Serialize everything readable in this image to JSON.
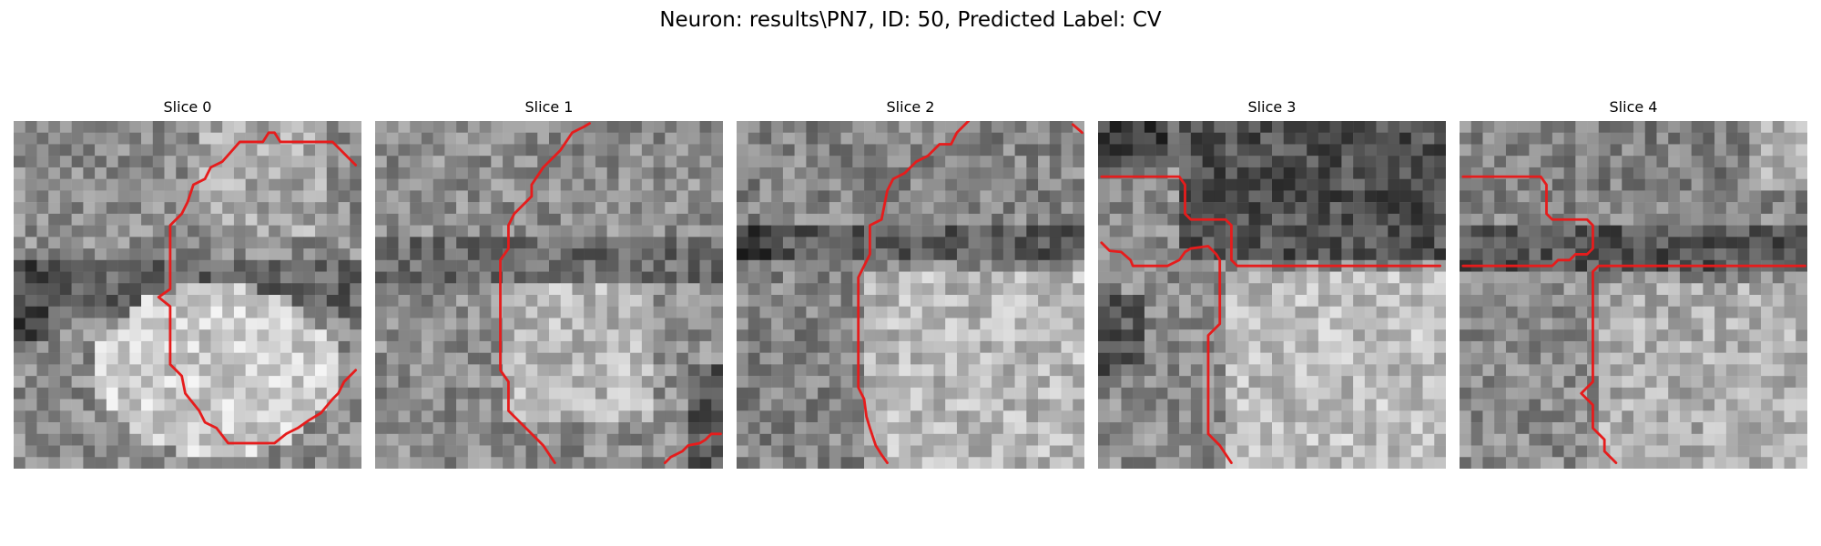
{
  "figure": {
    "title": "Neuron: results\\PN7, ID: 50, Predicted Label: CV"
  },
  "panels": [
    {
      "title": "Slice 0"
    },
    {
      "title": "Slice 1"
    },
    {
      "title": "Slice 2"
    },
    {
      "title": "Slice 3"
    },
    {
      "title": "Slice 4"
    }
  ],
  "colors": {
    "contour": "#e61c1c",
    "background": "#ffffff"
  }
}
